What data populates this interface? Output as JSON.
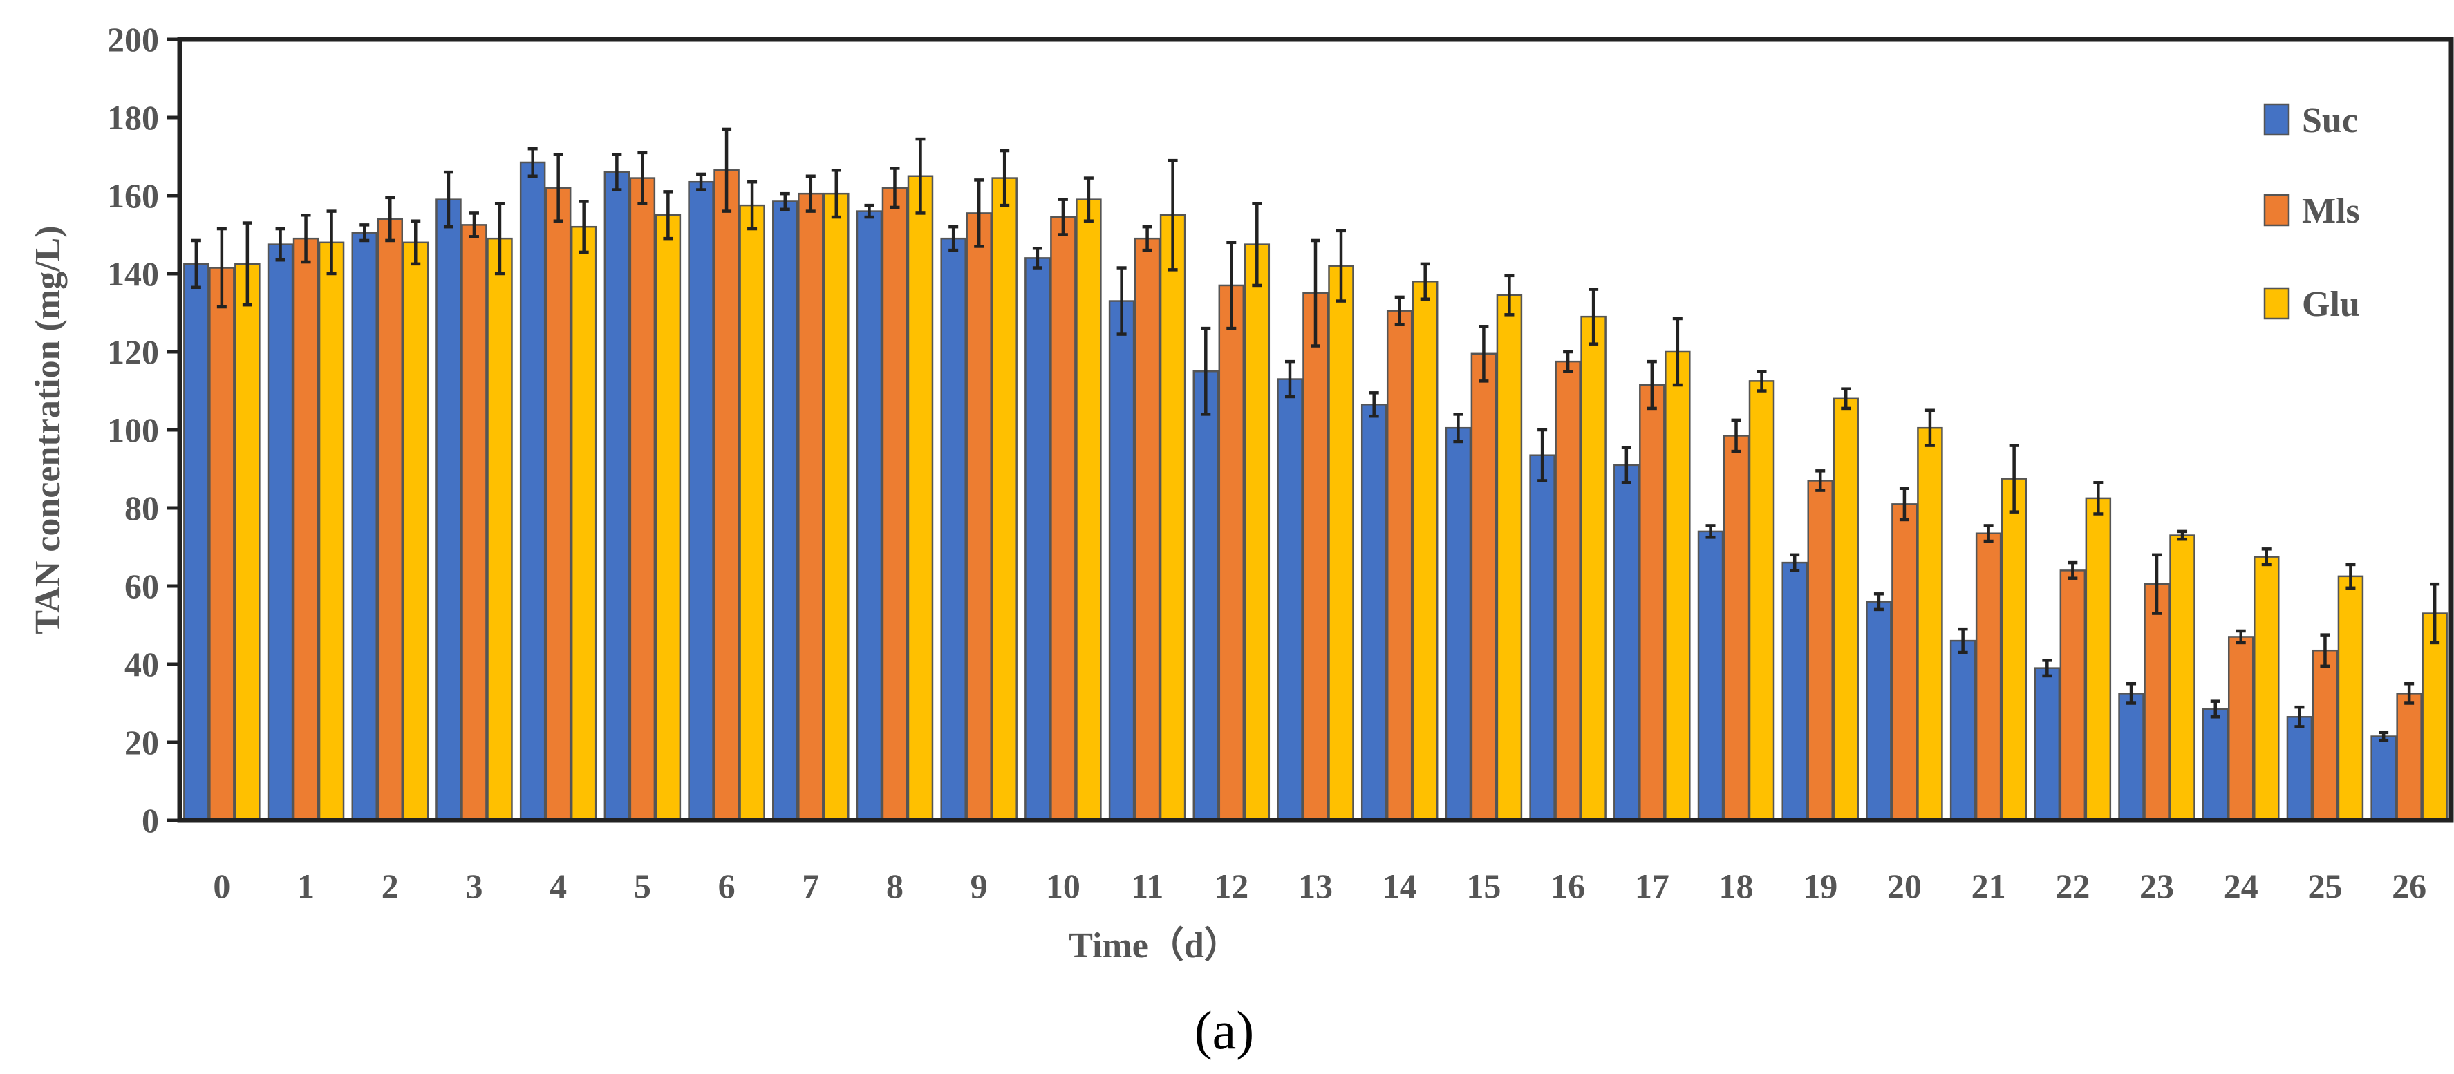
{
  "chart_data": {
    "type": "bar",
    "title": "",
    "xlabel": "Time（d）",
    "ylabel": "TAN concentration (mg/L)",
    "ylim": [
      0,
      200
    ],
    "yticks": [
      0,
      20,
      40,
      60,
      80,
      100,
      120,
      140,
      160,
      180,
      200
    ],
    "categories": [
      "0",
      "1",
      "2",
      "3",
      "4",
      "5",
      "6",
      "7",
      "8",
      "9",
      "10",
      "11",
      "12",
      "13",
      "14",
      "15",
      "16",
      "17",
      "18",
      "19",
      "20",
      "21",
      "22",
      "23",
      "24",
      "25",
      "26"
    ],
    "series": [
      {
        "name": "Suc",
        "color": "#4472C4",
        "values": [
          142.5,
          147.5,
          150.5,
          159,
          168.5,
          166,
          163.5,
          158.5,
          156,
          149,
          144,
          133,
          115,
          113,
          106.5,
          100.5,
          93.5,
          91,
          74,
          66,
          56,
          46,
          39,
          32.5,
          28.5,
          26.5,
          21.5
        ],
        "errors": [
          6,
          4,
          2,
          7,
          3.5,
          4.5,
          2,
          2,
          1.5,
          3,
          2.5,
          8.5,
          11,
          4.5,
          3,
          3.5,
          6.5,
          4.5,
          1.5,
          2,
          2,
          3,
          2,
          2.5,
          2,
          2.5,
          1
        ]
      },
      {
        "name": "Mls",
        "color": "#ED7D31",
        "values": [
          141.5,
          149,
          154,
          152.5,
          162,
          164.5,
          166.5,
          160.5,
          162,
          155.5,
          154.5,
          149,
          137,
          135,
          130.5,
          119.5,
          117.5,
          111.5,
          98.5,
          87,
          81,
          73.5,
          64,
          60.5,
          47,
          43.5,
          32.5
        ],
        "errors": [
          10,
          6,
          5.5,
          3,
          8.5,
          6.5,
          10.5,
          4.5,
          5,
          8.5,
          4.5,
          3,
          11,
          13.5,
          3.5,
          7,
          2.5,
          6,
          4,
          2.5,
          4,
          2,
          2,
          7.5,
          1.5,
          4,
          2.5
        ]
      },
      {
        "name": "Glu",
        "color": "#FFC000",
        "values": [
          142.5,
          148,
          148,
          149,
          152,
          155,
          157.5,
          160.5,
          165,
          164.5,
          159,
          155,
          147.5,
          142,
          138,
          134.5,
          129,
          120,
          112.5,
          108,
          100.5,
          87.5,
          82.5,
          73,
          67.5,
          62.5,
          53
        ],
        "errors": [
          10.5,
          8,
          5.5,
          9,
          6.5,
          6,
          6,
          6,
          9.5,
          7,
          5.5,
          14,
          10.5,
          9,
          4.5,
          5,
          7,
          8.5,
          2.5,
          2.5,
          4.5,
          8.5,
          4,
          1,
          2,
          3,
          7.5
        ]
      }
    ],
    "legend_position": "top-right",
    "grid": false
  },
  "caption": "(a)"
}
